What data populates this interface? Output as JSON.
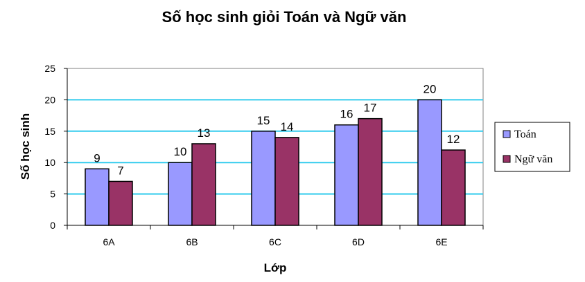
{
  "chart_data": {
    "type": "bar",
    "title": "Số học sinh giỏi Toán và Ngữ văn",
    "xlabel": "Lớp",
    "ylabel": "Số học sinh",
    "categories": [
      "6A",
      "6B",
      "6C",
      "6D",
      "6E"
    ],
    "series": [
      {
        "name": "Toán",
        "values": [
          9,
          10,
          15,
          16,
          20
        ],
        "color": "#9999ff"
      },
      {
        "name": "Ngữ văn",
        "values": [
          7,
          13,
          14,
          17,
          12
        ],
        "color": "#993366"
      }
    ],
    "ylim": [
      0,
      25
    ],
    "yticks": [
      "0",
      "5",
      "10",
      "15",
      "20",
      "25"
    ],
    "grid": true,
    "grid_color": "#33ccee",
    "legend_position": "right",
    "data_labels": true
  }
}
